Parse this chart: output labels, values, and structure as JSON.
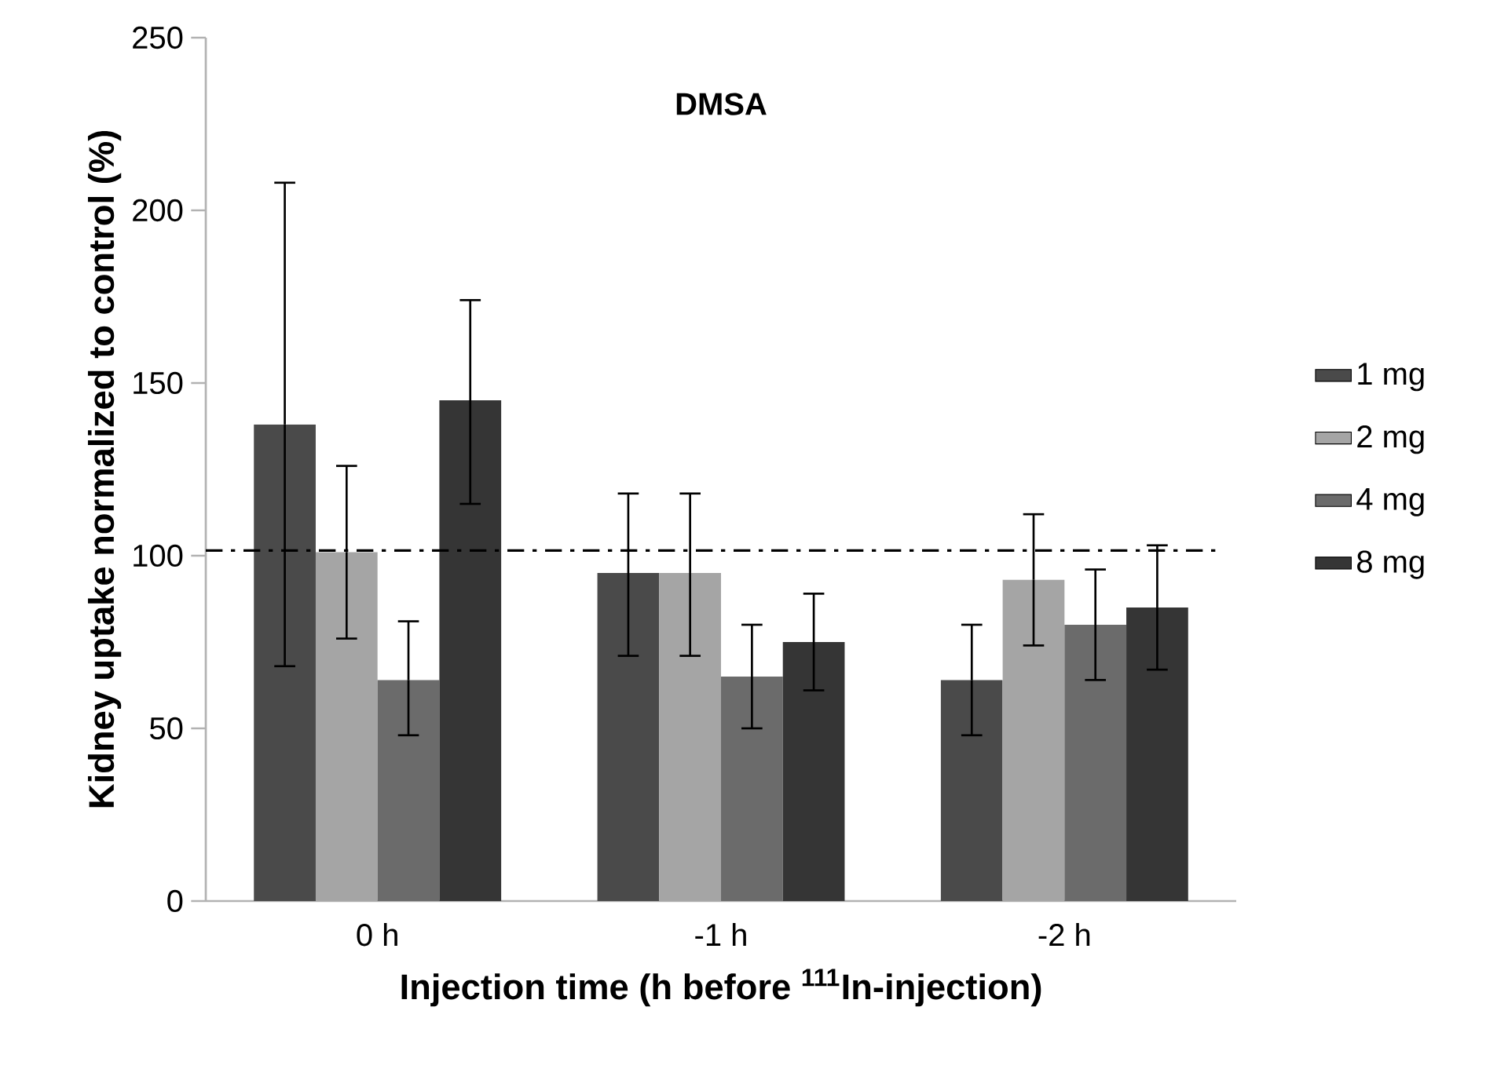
{
  "chart_data": {
    "type": "bar",
    "title": "DMSA",
    "xlabel": "Injection time (h before $^{111}$In-injection)",
    "ylabel": "Kidney uptake normalized to control (%)",
    "categories": [
      "0 h",
      "-1 h",
      "-2 h"
    ],
    "series": [
      {
        "name": "1 mg",
        "color": "#4a4a4a",
        "values": [
          138,
          95,
          64
        ],
        "errors": [
          [
            68,
            208
          ],
          [
            71,
            118
          ],
          [
            48,
            80
          ]
        ]
      },
      {
        "name": "2 mg",
        "color": "#a5a5a5",
        "values": [
          101,
          95,
          93
        ],
        "errors": [
          [
            76,
            126
          ],
          [
            71,
            118
          ],
          [
            74,
            112
          ]
        ]
      },
      {
        "name": "4 mg",
        "color": "#6b6b6b",
        "values": [
          64,
          65,
          80
        ],
        "errors": [
          [
            48,
            81
          ],
          [
            50,
            80
          ],
          [
            64,
            96
          ]
        ]
      },
      {
        "name": "8 mg",
        "color": "#353535",
        "values": [
          145,
          75,
          85
        ],
        "errors": [
          [
            115,
            174
          ],
          [
            61,
            89
          ],
          [
            67,
            103
          ]
        ]
      }
    ],
    "ylim": [
      0,
      250
    ],
    "yticks": [
      0,
      50,
      100,
      150,
      200,
      250
    ],
    "ref_lines": [
      {
        "axis": "y",
        "value": 101.5,
        "line_style": "dashdotted",
        "color": "#000000"
      }
    ],
    "legend": "right",
    "grid": false
  }
}
